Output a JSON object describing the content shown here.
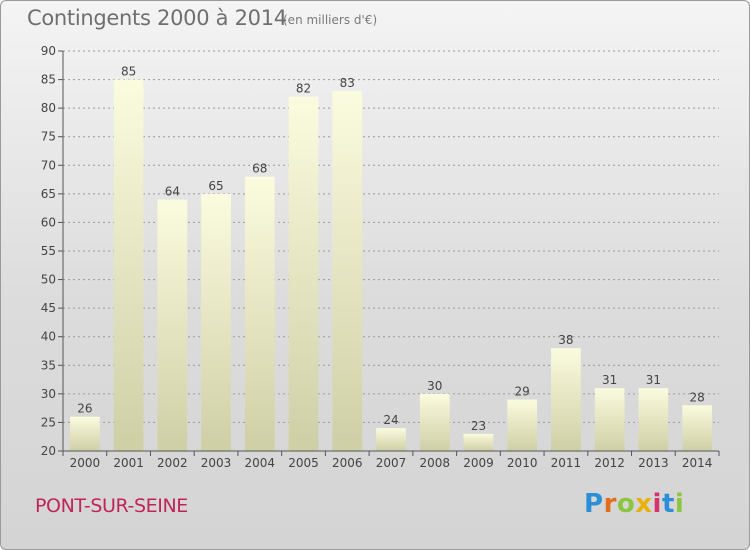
{
  "header": {
    "title": "Contingents 2000 à 2014",
    "unit": "(en milliers d'€)"
  },
  "footer": {
    "place": "PONT-SUR-SEINE",
    "logo": "Proxiti"
  },
  "colors": {
    "bar_light": "#fbfbdf",
    "bar_dark": "#cfcfa6",
    "axis": "#555555",
    "grid": "#9a9a9a",
    "place": "#c0245a"
  },
  "chart_data": {
    "type": "bar",
    "categories": [
      "2000",
      "2001",
      "2002",
      "2003",
      "2004",
      "2005",
      "2006",
      "2007",
      "2008",
      "2009",
      "2010",
      "2011",
      "2012",
      "2013",
      "2014"
    ],
    "values": [
      26,
      85,
      64,
      65,
      68,
      82,
      83,
      24,
      30,
      23,
      29,
      38,
      31,
      31,
      28
    ],
    "title": "Contingents 2000 à 2014",
    "ylim": [
      20,
      90
    ],
    "yticks": [
      20,
      25,
      30,
      35,
      40,
      45,
      50,
      55,
      60,
      65,
      70,
      75,
      80,
      85,
      90
    ],
    "grid": "horizontal dashed",
    "data_labels": true
  }
}
